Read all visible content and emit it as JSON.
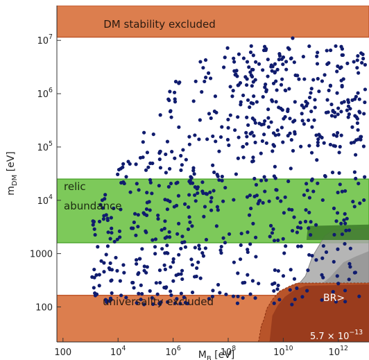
{
  "chart_data": {
    "type": "scatter",
    "title": "",
    "xlabel": "M_B [eV]",
    "ylabel": "m_DM [eV]",
    "x_scale": "log",
    "y_scale": "log",
    "xlim": [
      60,
      13000000000000.0
    ],
    "ylim": [
      22,
      45000000.0
    ],
    "x_ticks": [
      {
        "value": 100,
        "base": "100",
        "exp": ""
      },
      {
        "value": 10000.0,
        "base": "10",
        "exp": "4"
      },
      {
        "value": 1000000.0,
        "base": "10",
        "exp": "6"
      },
      {
        "value": 100000000.0,
        "base": "10",
        "exp": "8"
      },
      {
        "value": 10000000000.0,
        "base": "10",
        "exp": "10"
      },
      {
        "value": 1000000000000.0,
        "base": "10",
        "exp": "12"
      }
    ],
    "y_ticks": [
      {
        "value": 100,
        "base": "100",
        "exp": ""
      },
      {
        "value": 1000,
        "base": "1000",
        "exp": ""
      },
      {
        "value": 10000.0,
        "base": "10",
        "exp": "4"
      },
      {
        "value": 100000.0,
        "base": "10",
        "exp": "5"
      },
      {
        "value": 1000000.0,
        "base": "10",
        "exp": "6"
      },
      {
        "value": 10000000.0,
        "base": "10",
        "exp": "7"
      }
    ],
    "grid": false,
    "regions": [
      {
        "id": "dm-stability",
        "label": "DM stability  excluded",
        "y_range": [
          11500000.0,
          45000000.0
        ],
        "color": "#dc7e4e"
      },
      {
        "id": "relic-abundance",
        "label_lines": [
          "relic",
          "abundance"
        ],
        "y_range": [
          1600,
          25000.0
        ],
        "color": "#7dc95a"
      },
      {
        "id": "universality",
        "label": "universality  excluded",
        "y_range": [
          22,
          165
        ],
        "color": "#dc7e4e"
      },
      {
        "id": "branching-ratio",
        "label": "BR>",
        "value_base": "5.7 × 10",
        "value_exp": "−13",
        "x_min": 2000000000.0,
        "color": "#9a3c1d"
      },
      {
        "id": "grey-excluded",
        "x_min": 20000000000.0,
        "color": "#a8a8a8"
      },
      {
        "id": "green-overlap",
        "x_min": 70000000000.0,
        "y_range": [
          1800,
          3300
        ],
        "color": "#3f7f2b"
      }
    ],
    "series": [
      {
        "name": "",
        "color": "#101c6e",
        "clusters": [
          {
            "x_range": [
              1000.0,
              10000000000000.0
            ],
            "y_range": [
              110,
              8000000.0
            ],
            "count": 560
          },
          {
            "x_range": [
              1000.0,
              10000000.0
            ],
            "y_range": [
              110,
              100000.0
            ],
            "count": 140
          },
          {
            "x_range": [
              100000000.0,
              10000000000000.0
            ],
            "y_range": [
              100000.0,
              8000000.0
            ],
            "count": 150
          }
        ]
      }
    ],
    "points_extra": [
      {
        "x": 22000000000.0,
        "y": 11000000.0
      }
    ]
  }
}
